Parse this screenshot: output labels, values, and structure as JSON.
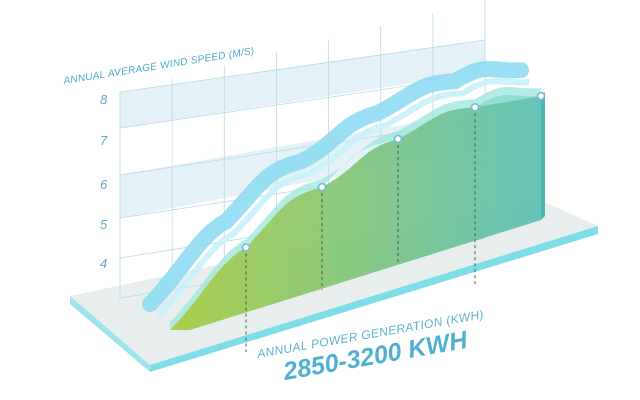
{
  "chart_data": {
    "type": "area",
    "ylabel": "ANNUAL AVERAGE WIND SPEED (M/S)",
    "xlabel": "ANNUAL POWER GENERATION (KWH)",
    "range_label": "2850-3200 KWH",
    "yticks": [
      "8",
      "7",
      "6",
      "5",
      "4"
    ],
    "ylim": [
      3.5,
      8.5
    ],
    "series": [
      {
        "values": [
          4.5,
          5.9,
          7.0,
          7.7,
          7.9
        ]
      }
    ],
    "colors": {
      "area_start": "#a6cc3f",
      "area_end": "#5bbfb5",
      "ribbon": "#8fdcf2",
      "platform_top": "#e8eeee",
      "platform_edge": "#7fdde7",
      "grid": "#b9dbe6"
    }
  }
}
